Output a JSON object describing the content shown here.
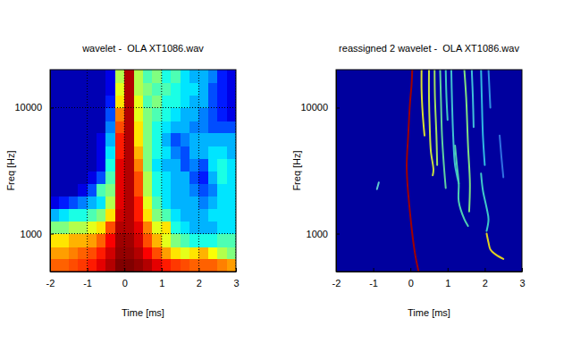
{
  "chart_data": [
    {
      "type": "heatmap",
      "title": "wavelet -  OLA XT1086.wav",
      "x_label": "Time [ms]",
      "y_label": "Freq [Hz]",
      "xlim": [
        -2,
        3
      ],
      "ylim": [
        500,
        20000
      ],
      "xticks": [
        -2,
        -1,
        0,
        1,
        2,
        3
      ],
      "yticks": [
        1000,
        10000
      ],
      "log": "y",
      "grid": true,
      "zlim": [
        0,
        1
      ],
      "x_bins": [
        -2,
        -1.75,
        -1.5,
        -1.25,
        -1,
        -0.75,
        -0.5,
        -0.25,
        0,
        0.25,
        0.5,
        0.75,
        1,
        1.25,
        1.5,
        1.75,
        2,
        2.25,
        2.5,
        2.75,
        3
      ],
      "y_bins": [
        500,
        630,
        790,
        1000,
        1260,
        1580,
        2000,
        2510,
        3160,
        3980,
        5000,
        6300,
        7900,
        10000,
        12600,
        15800,
        20000
      ],
      "z": [
        [
          0.78,
          0.78,
          0.8,
          0.82,
          0.85,
          0.9,
          0.95,
          1.0,
          1.0,
          0.98,
          0.95,
          0.9,
          0.85,
          0.82,
          0.8,
          0.78,
          0.78,
          0.78,
          0.75,
          0.72
        ],
        [
          0.72,
          0.72,
          0.75,
          0.78,
          0.8,
          0.85,
          0.92,
          0.98,
          0.98,
          0.95,
          0.88,
          0.8,
          0.72,
          0.65,
          0.6,
          0.65,
          0.7,
          0.62,
          0.55,
          0.5
        ],
        [
          0.65,
          0.65,
          0.7,
          0.7,
          0.72,
          0.78,
          0.88,
          0.97,
          0.97,
          0.92,
          0.8,
          0.7,
          0.6,
          0.5,
          0.45,
          0.4,
          0.4,
          0.4,
          0.45,
          0.45
        ],
        [
          0.5,
          0.5,
          0.55,
          0.55,
          0.6,
          0.65,
          0.8,
          0.95,
          0.95,
          0.9,
          0.75,
          0.6,
          0.65,
          0.4,
          0.35,
          0.3,
          0.3,
          0.3,
          0.35,
          0.35
        ],
        [
          0.3,
          0.35,
          0.4,
          0.4,
          0.45,
          0.5,
          0.65,
          0.92,
          0.95,
          0.85,
          0.65,
          0.5,
          0.45,
          0.35,
          0.3,
          0.3,
          0.3,
          0.35,
          0.35,
          0.35
        ],
        [
          0.1,
          0.15,
          0.2,
          0.25,
          0.3,
          0.35,
          0.55,
          0.9,
          0.95,
          0.85,
          0.6,
          0.45,
          0.35,
          0.3,
          0.3,
          0.3,
          0.25,
          0.3,
          0.35,
          0.35
        ],
        [
          0.05,
          0.05,
          0.05,
          0.1,
          0.2,
          0.45,
          0.5,
          0.9,
          0.95,
          0.8,
          0.55,
          0.4,
          0.35,
          0.3,
          0.3,
          0.25,
          0.2,
          0.25,
          0.35,
          0.35
        ],
        [
          0.05,
          0.05,
          0.05,
          0.05,
          0.1,
          0.2,
          0.45,
          0.9,
          0.95,
          0.8,
          0.55,
          0.4,
          0.35,
          0.3,
          0.3,
          0.2,
          0.15,
          0.3,
          0.4,
          0.35
        ],
        [
          0.05,
          0.05,
          0.05,
          0.05,
          0.05,
          0.1,
          0.4,
          0.9,
          0.95,
          0.75,
          0.5,
          0.35,
          0.3,
          0.3,
          0.2,
          0.25,
          0.2,
          0.35,
          0.4,
          0.35
        ],
        [
          0.05,
          0.05,
          0.05,
          0.05,
          0.05,
          0.1,
          0.35,
          0.85,
          0.95,
          0.7,
          0.5,
          0.4,
          0.35,
          0.25,
          0.2,
          0.3,
          0.3,
          0.35,
          0.35,
          0.3
        ],
        [
          0.05,
          0.05,
          0.05,
          0.05,
          0.05,
          0.1,
          0.3,
          0.85,
          0.95,
          0.65,
          0.5,
          0.4,
          0.3,
          0.2,
          0.25,
          0.3,
          0.3,
          0.3,
          0.3,
          0.3
        ],
        [
          0.05,
          0.05,
          0.05,
          0.05,
          0.05,
          0.05,
          0.25,
          0.8,
          0.95,
          0.65,
          0.5,
          0.4,
          0.35,
          0.3,
          0.3,
          0.25,
          0.25,
          0.2,
          0.2,
          0.2
        ],
        [
          0.05,
          0.05,
          0.05,
          0.05,
          0.05,
          0.05,
          0.2,
          0.75,
          0.95,
          0.6,
          0.5,
          0.45,
          0.4,
          0.35,
          0.3,
          0.3,
          0.25,
          0.2,
          0.15,
          0.1
        ],
        [
          0.05,
          0.05,
          0.05,
          0.05,
          0.05,
          0.05,
          0.15,
          0.65,
          0.95,
          0.6,
          0.45,
          0.5,
          0.4,
          0.4,
          0.35,
          0.3,
          0.3,
          0.2,
          0.15,
          0.1
        ],
        [
          0.05,
          0.05,
          0.05,
          0.05,
          0.05,
          0.05,
          0.1,
          0.6,
          0.95,
          0.55,
          0.5,
          0.45,
          0.45,
          0.4,
          0.35,
          0.35,
          0.3,
          0.2,
          0.15,
          0.1
        ],
        [
          0.05,
          0.05,
          0.05,
          0.05,
          0.05,
          0.05,
          0.1,
          0.55,
          0.95,
          0.55,
          0.45,
          0.5,
          0.4,
          0.45,
          0.35,
          0.3,
          0.3,
          0.25,
          0.15,
          0.1
        ]
      ]
    },
    {
      "type": "line",
      "title": "reassigned 2 wavelet -  OLA XT1086.wav",
      "x_label": "Time [ms]",
      "y_label": "Freq [Hz]",
      "xlim": [
        -2,
        3
      ],
      "ylim": [
        500,
        20000
      ],
      "xticks": [
        -2,
        -1,
        0,
        1,
        2,
        3
      ],
      "yticks": [
        1000,
        10000
      ],
      "log": "y",
      "grid": false,
      "series": [
        {
          "color": "#a00000",
          "x": [
            0.05,
            0.03,
            0.0,
            -0.02,
            -0.06,
            -0.1,
            -0.08,
            -0.04,
            0.02,
            0.08,
            0.14,
            0.22
          ],
          "values": [
            20000,
            15000,
            12000,
            10000,
            6000,
            3500,
            2500,
            1800,
            1200,
            850,
            650,
            500
          ]
        },
        {
          "color": "#d8e030",
          "x": [
            0.3,
            0.3,
            0.32,
            0.35,
            0.38
          ],
          "values": [
            20000,
            14000,
            10000,
            7500,
            6000
          ]
        },
        {
          "color": "#c8e040",
          "x": [
            0.5,
            0.5,
            0.52,
            0.55,
            0.62,
            0.6
          ],
          "values": [
            20000,
            12000,
            7000,
            4500,
            3200,
            2900
          ]
        },
        {
          "color": "#a0e060",
          "x": [
            0.65,
            0.66,
            0.7,
            0.72
          ],
          "values": [
            20000,
            12000,
            6000,
            3500
          ]
        },
        {
          "color": "#60d0a0",
          "x": [
            0.8,
            0.82,
            0.85,
            0.9,
            0.95
          ],
          "values": [
            20000,
            12000,
            6000,
            3500,
            2300
          ]
        },
        {
          "color": "#40c8c0",
          "x": [
            0.95,
            0.97,
            1.0
          ],
          "values": [
            20000,
            12000,
            8000
          ]
        },
        {
          "color": "#40c0d0",
          "x": [
            1.1,
            1.12,
            1.15,
            1.2,
            1.3
          ],
          "values": [
            20000,
            11000,
            6000,
            3500,
            2500
          ]
        },
        {
          "color": "#50d0b0",
          "x": [
            1.2,
            1.25,
            1.3,
            1.3,
            1.45,
            1.55
          ],
          "values": [
            5000,
            3500,
            2500,
            1800,
            1300,
            1150
          ]
        },
        {
          "color": "#80e080",
          "x": [
            1.45,
            1.5,
            1.55,
            1.6,
            1.58
          ],
          "values": [
            20000,
            12000,
            5000,
            2500,
            1500
          ]
        },
        {
          "color": "#40c0d8",
          "x": [
            1.65,
            1.68,
            1.7
          ],
          "values": [
            20000,
            12000,
            7000
          ]
        },
        {
          "color": "#30b8e0",
          "x": [
            1.9,
            1.92,
            1.95,
            2.0
          ],
          "values": [
            20000,
            12000,
            6000,
            3500
          ]
        },
        {
          "color": "#40c8c8",
          "x": [
            1.9,
            1.95,
            2.05,
            2.1,
            2.05
          ],
          "values": [
            3000,
            2200,
            1600,
            1300,
            1050
          ]
        },
        {
          "color": "#e0d020",
          "x": [
            2.05,
            2.1,
            2.15,
            2.3,
            2.5
          ],
          "values": [
            1000,
            850,
            750,
            680,
            630
          ]
        },
        {
          "color": "#3070e0",
          "x": [
            2.4,
            2.45,
            2.5
          ],
          "values": [
            6000,
            4000,
            2800
          ]
        },
        {
          "color": "#3090e0",
          "x": [
            2.1,
            2.15
          ],
          "values": [
            20000,
            10000
          ]
        },
        {
          "color": "#60c8d0",
          "x": [
            -0.9,
            -0.85
          ],
          "values": [
            2250,
            2550
          ]
        }
      ]
    }
  ]
}
